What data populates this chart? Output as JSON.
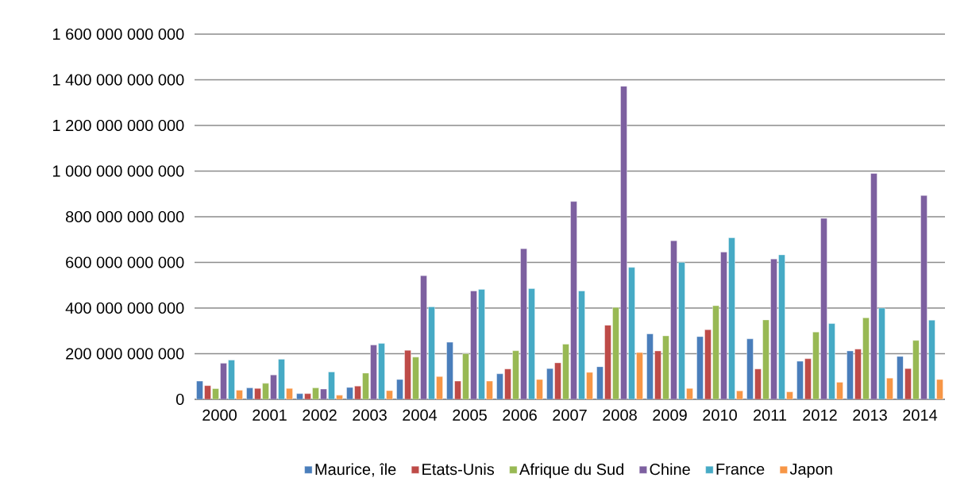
{
  "chart_data": {
    "type": "bar",
    "categories": [
      "2000",
      "2001",
      "2002",
      "2003",
      "2004",
      "2005",
      "2006",
      "2007",
      "2008",
      "2009",
      "2010",
      "2011",
      "2012",
      "2013",
      "2014"
    ],
    "series": [
      {
        "name": "Maurice, île",
        "color": "#4a7ebb",
        "values": [
          80000000000,
          50000000000,
          25000000000,
          52000000000,
          87000000000,
          250000000000,
          112000000000,
          135000000000,
          143000000000,
          287000000000,
          275000000000,
          265000000000,
          167000000000,
          212000000000,
          188000000000
        ]
      },
      {
        "name": "Etats-Unis",
        "color": "#be4b48",
        "values": [
          60000000000,
          48000000000,
          25000000000,
          58000000000,
          215000000000,
          80000000000,
          133000000000,
          160000000000,
          325000000000,
          212000000000,
          305000000000,
          133000000000,
          178000000000,
          220000000000,
          135000000000
        ]
      },
      {
        "name": "Afrique du Sud",
        "color": "#98b954",
        "values": [
          47000000000,
          70000000000,
          50000000000,
          115000000000,
          185000000000,
          200000000000,
          213000000000,
          242000000000,
          403000000000,
          278000000000,
          410000000000,
          348000000000,
          295000000000,
          357000000000,
          258000000000
        ]
      },
      {
        "name": "Chine",
        "color": "#7d60a0",
        "values": [
          158000000000,
          107000000000,
          45000000000,
          238000000000,
          542000000000,
          475000000000,
          660000000000,
          867000000000,
          1372000000000,
          695000000000,
          645000000000,
          615000000000,
          793000000000,
          990000000000,
          893000000000
        ]
      },
      {
        "name": "France",
        "color": "#46aac5",
        "values": [
          172000000000,
          176000000000,
          120000000000,
          245000000000,
          405000000000,
          482000000000,
          485000000000,
          475000000000,
          578000000000,
          600000000000,
          708000000000,
          633000000000,
          332000000000,
          400000000000,
          347000000000
        ]
      },
      {
        "name": "Japon",
        "color": "#f79646",
        "values": [
          40000000000,
          48000000000,
          18000000000,
          38000000000,
          100000000000,
          80000000000,
          87000000000,
          118000000000,
          205000000000,
          48000000000,
          37000000000,
          33000000000,
          75000000000,
          93000000000,
          87000000000
        ]
      }
    ],
    "ylim": [
      0,
      1600000000000
    ],
    "yticks": [
      0,
      {
        "value": 200000000000,
        "label": "200 000 000 000"
      },
      {
        "value": 400000000000,
        "label": "400 000 000 000"
      },
      {
        "value": 600000000000,
        "label": "600 000 000 000"
      },
      {
        "value": 800000000000,
        "label": "800 000 000 000"
      },
      {
        "value": 1000000000000,
        "label": "1 000 000 000 000"
      },
      {
        "value": 1200000000000,
        "label": "1 200 000 000 000"
      },
      {
        "value": 1400000000000,
        "label": "1 400 000 000 000"
      },
      {
        "value": 1600000000000,
        "label": "1 600 000 000 000"
      }
    ],
    "grid": "y",
    "legend": "bottom"
  }
}
